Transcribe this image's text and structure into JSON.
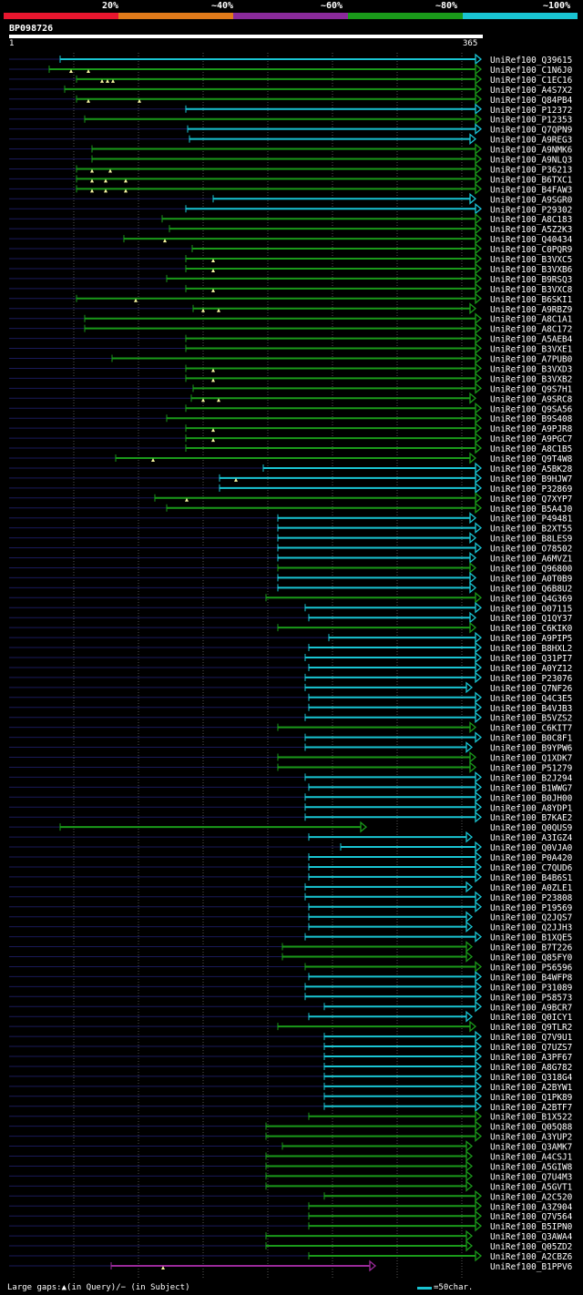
{
  "legend": {
    "labels": [
      "20%",
      "~40%",
      "~60%",
      "~80%",
      "~100%"
    ],
    "colors": [
      "#e8162e",
      "#e07a1a",
      "#8a2a9a",
      "#1a9a1a",
      "#19c4d2"
    ]
  },
  "query": {
    "id": "BP098726",
    "start": "1",
    "end": "365"
  },
  "footer": {
    "gaps": "Large gaps:▲(in Query)/− (in Subject)",
    "scale": "=50char."
  },
  "hits": [
    {
      "name": "UniRef100_Q39615",
      "start": 66,
      "end": 528,
      "color": "cyan",
      "marks": []
    },
    {
      "name": "UniRef100_C1N6J0",
      "start": 54,
      "end": 528,
      "color": "green",
      "marks": [
        78,
        97
      ]
    },
    {
      "name": "UniRef100_C1EC16",
      "start": 84,
      "end": 528,
      "color": "green",
      "marks": [
        112,
        118,
        124
      ]
    },
    {
      "name": "UniRef100_A4S7X2",
      "start": 71,
      "end": 528,
      "color": "green",
      "marks": []
    },
    {
      "name": "UniRef100_Q84PB4",
      "start": 84,
      "end": 528,
      "color": "green",
      "marks": [
        97,
        153
      ]
    },
    {
      "name": "UniRef100_P12372",
      "start": 204,
      "end": 528,
      "color": "cyan",
      "marks": []
    },
    {
      "name": "UniRef100_P12353",
      "start": 93,
      "end": 528,
      "color": "green",
      "marks": []
    },
    {
      "name": "UniRef100_Q7QPN9",
      "start": 206,
      "end": 528,
      "color": "cyan",
      "marks": []
    },
    {
      "name": "UniRef100_A9REG3",
      "start": 208,
      "end": 522,
      "color": "cyan",
      "marks": []
    },
    {
      "name": "UniRef100_A9NMK6",
      "start": 101,
      "end": 528,
      "color": "green",
      "marks": []
    },
    {
      "name": "UniRef100_A9NLQ3",
      "start": 101,
      "end": 528,
      "color": "green",
      "marks": []
    },
    {
      "name": "UniRef100_P36213",
      "start": 84,
      "end": 528,
      "color": "green",
      "marks": [
        101,
        121
      ]
    },
    {
      "name": "UniRef100_B6TXC1",
      "start": 84,
      "end": 528,
      "color": "green",
      "marks": [
        101,
        116,
        138
      ]
    },
    {
      "name": "UniRef100_B4FAW3",
      "start": 84,
      "end": 528,
      "color": "green",
      "marks": [
        101,
        116,
        138
      ]
    },
    {
      "name": "UniRef100_A9SGR0",
      "start": 234,
      "end": 522,
      "color": "cyan",
      "marks": []
    },
    {
      "name": "UniRef100_P29302",
      "start": 204,
      "end": 528,
      "color": "cyan",
      "marks": []
    },
    {
      "name": "UniRef100_A8C183",
      "start": 178,
      "end": 528,
      "color": "green",
      "marks": []
    },
    {
      "name": "UniRef100_A5Z2K3",
      "start": 186,
      "end": 528,
      "color": "green",
      "marks": []
    },
    {
      "name": "UniRef100_Q40434",
      "start": 136,
      "end": 528,
      "color": "green",
      "marks": [
        181
      ]
    },
    {
      "name": "UniRef100_C0PQR9",
      "start": 211,
      "end": 528,
      "color": "green",
      "marks": []
    },
    {
      "name": "UniRef100_B3VXC5",
      "start": 204,
      "end": 528,
      "color": "green",
      "marks": [
        234
      ]
    },
    {
      "name": "UniRef100_B3VXB6",
      "start": 204,
      "end": 528,
      "color": "green",
      "marks": [
        234
      ]
    },
    {
      "name": "UniRef100_B9RSQ3",
      "start": 183,
      "end": 528,
      "color": "green",
      "marks": []
    },
    {
      "name": "UniRef100_B3VXC8",
      "start": 204,
      "end": 528,
      "color": "green",
      "marks": [
        234
      ]
    },
    {
      "name": "UniRef100_B6SKI1",
      "start": 84,
      "end": 528,
      "color": "green",
      "marks": [
        149
      ]
    },
    {
      "name": "UniRef100_A9RBZ9",
      "start": 212,
      "end": 522,
      "color": "green",
      "marks": [
        223,
        240
      ]
    },
    {
      "name": "UniRef100_A8C1A1",
      "start": 93,
      "end": 528,
      "color": "green",
      "marks": []
    },
    {
      "name": "UniRef100_A8C172",
      "start": 93,
      "end": 528,
      "color": "green",
      "marks": []
    },
    {
      "name": "UniRef100_A5AEB4",
      "start": 204,
      "end": 528,
      "color": "green",
      "marks": []
    },
    {
      "name": "UniRef100_B3VXE1",
      "start": 204,
      "end": 528,
      "color": "green",
      "marks": []
    },
    {
      "name": "UniRef100_A7PUB0",
      "start": 123,
      "end": 528,
      "color": "green",
      "marks": []
    },
    {
      "name": "UniRef100_B3VXD3",
      "start": 204,
      "end": 528,
      "color": "green",
      "marks": [
        234
      ]
    },
    {
      "name": "UniRef100_B3VXB2",
      "start": 204,
      "end": 528,
      "color": "green",
      "marks": [
        234
      ]
    },
    {
      "name": "UniRef100_Q9S7H1",
      "start": 212,
      "end": 528,
      "color": "green",
      "marks": []
    },
    {
      "name": "UniRef100_A9SRC8",
      "start": 210,
      "end": 522,
      "color": "green",
      "marks": [
        223,
        240
      ]
    },
    {
      "name": "UniRef100_Q9SA56",
      "start": 204,
      "end": 528,
      "color": "green",
      "marks": []
    },
    {
      "name": "UniRef100_B9S408",
      "start": 183,
      "end": 528,
      "color": "green",
      "marks": []
    },
    {
      "name": "UniRef100_A9PJR8",
      "start": 204,
      "end": 528,
      "color": "green",
      "marks": [
        234
      ]
    },
    {
      "name": "UniRef100_A9PGC7",
      "start": 204,
      "end": 528,
      "color": "green",
      "marks": [
        234
      ]
    },
    {
      "name": "UniRef100_A8C1B5",
      "start": 204,
      "end": 528,
      "color": "green",
      "marks": []
    },
    {
      "name": "UniRef100_Q9T4W8",
      "start": 127,
      "end": 522,
      "color": "green",
      "marks": [
        168
      ]
    },
    {
      "name": "UniRef100_A5BK28",
      "start": 289,
      "end": 528,
      "color": "cyan",
      "marks": []
    },
    {
      "name": "UniRef100_B9HJW7",
      "start": 241,
      "end": 528,
      "color": "cyan",
      "marks": [
        259
      ]
    },
    {
      "name": "UniRef100_P32869",
      "start": 241,
      "end": 528,
      "color": "cyan",
      "marks": []
    },
    {
      "name": "UniRef100_Q7XYP7",
      "start": 170,
      "end": 528,
      "color": "green",
      "marks": [
        205
      ]
    },
    {
      "name": "UniRef100_B5A4J0",
      "start": 183,
      "end": 528,
      "color": "green",
      "marks": []
    },
    {
      "name": "UniRef100_P49481",
      "start": 305,
      "end": 522,
      "color": "cyan",
      "marks": []
    },
    {
      "name": "UniRef100_B2XT55",
      "start": 305,
      "end": 528,
      "color": "cyan",
      "marks": []
    },
    {
      "name": "UniRef100_B8LES9",
      "start": 305,
      "end": 522,
      "color": "cyan",
      "marks": []
    },
    {
      "name": "UniRef100_O78502",
      "start": 305,
      "end": 528,
      "color": "cyan",
      "marks": []
    },
    {
      "name": "UniRef100_A6MVZ1",
      "start": 305,
      "end": 522,
      "color": "cyan",
      "marks": []
    },
    {
      "name": "UniRef100_Q96800",
      "start": 305,
      "end": 522,
      "color": "green",
      "marks": []
    },
    {
      "name": "UniRef100_A0T0B9",
      "start": 305,
      "end": 522,
      "color": "cyan",
      "marks": []
    },
    {
      "name": "UniRef100_Q6B8U2",
      "start": 305,
      "end": 522,
      "color": "cyan",
      "marks": []
    },
    {
      "name": "UniRef100_Q4G369",
      "start": 292,
      "end": 528,
      "color": "green",
      "marks": []
    },
    {
      "name": "UniRef100_O07115",
      "start": 335,
      "end": 528,
      "color": "cyan",
      "marks": []
    },
    {
      "name": "UniRef100_Q1QY37",
      "start": 339,
      "end": 522,
      "color": "cyan",
      "marks": []
    },
    {
      "name": "UniRef100_C6KIK0",
      "start": 305,
      "end": 522,
      "color": "green",
      "marks": []
    },
    {
      "name": "UniRef100_A9PIP5",
      "start": 361,
      "end": 528,
      "color": "cyan",
      "marks": []
    },
    {
      "name": "UniRef100_B8HXL2",
      "start": 339,
      "end": 528,
      "color": "cyan",
      "marks": []
    },
    {
      "name": "UniRef100_Q31PI7",
      "start": 335,
      "end": 528,
      "color": "cyan",
      "marks": []
    },
    {
      "name": "UniRef100_A0YZ12",
      "start": 339,
      "end": 528,
      "color": "cyan",
      "marks": []
    },
    {
      "name": "UniRef100_P23076",
      "start": 335,
      "end": 528,
      "color": "cyan",
      "marks": []
    },
    {
      "name": "UniRef100_Q7NF26",
      "start": 335,
      "end": 518,
      "color": "cyan",
      "marks": []
    },
    {
      "name": "UniRef100_Q4C3E5",
      "start": 339,
      "end": 528,
      "color": "cyan",
      "marks": []
    },
    {
      "name": "UniRef100_B4VJB3",
      "start": 339,
      "end": 528,
      "color": "cyan",
      "marks": []
    },
    {
      "name": "UniRef100_B5VZS2",
      "start": 335,
      "end": 528,
      "color": "cyan",
      "marks": []
    },
    {
      "name": "UniRef100_C6KIT7",
      "start": 305,
      "end": 522,
      "color": "green",
      "marks": []
    },
    {
      "name": "UniRef100_B0C8F1",
      "start": 335,
      "end": 528,
      "color": "cyan",
      "marks": []
    },
    {
      "name": "UniRef100_B9YPW6",
      "start": 335,
      "end": 518,
      "color": "cyan",
      "marks": []
    },
    {
      "name": "UniRef100_Q1XDK7",
      "start": 305,
      "end": 522,
      "color": "green",
      "marks": []
    },
    {
      "name": "UniRef100_P51279",
      "start": 305,
      "end": 522,
      "color": "green",
      "marks": []
    },
    {
      "name": "UniRef100_B2J294",
      "start": 335,
      "end": 528,
      "color": "cyan",
      "marks": []
    },
    {
      "name": "UniRef100_B1WWG7",
      "start": 339,
      "end": 528,
      "color": "cyan",
      "marks": []
    },
    {
      "name": "UniRef100_B0JH00",
      "start": 335,
      "end": 528,
      "color": "cyan",
      "marks": []
    },
    {
      "name": "UniRef100_A8YDP1",
      "start": 335,
      "end": 528,
      "color": "cyan",
      "marks": []
    },
    {
      "name": "UniRef100_B7KAE2",
      "start": 335,
      "end": 528,
      "color": "cyan",
      "marks": []
    },
    {
      "name": "UniRef100_Q0QUS9",
      "start": 66,
      "end": 402,
      "color": "green",
      "marks": []
    },
    {
      "name": "UniRef100_A3IGZ4",
      "start": 339,
      "end": 518,
      "color": "cyan",
      "marks": []
    },
    {
      "name": "UniRef100_Q0VJA0",
      "start": 374,
      "end": 528,
      "color": "cyan",
      "marks": []
    },
    {
      "name": "UniRef100_P0A420",
      "start": 339,
      "end": 528,
      "color": "cyan",
      "marks": []
    },
    {
      "name": "UniRef100_C7QUD6",
      "start": 339,
      "end": 528,
      "color": "cyan",
      "marks": []
    },
    {
      "name": "UniRef100_B4B6S1",
      "start": 339,
      "end": 528,
      "color": "cyan",
      "marks": []
    },
    {
      "name": "UniRef100_A0ZLE1",
      "start": 335,
      "end": 518,
      "color": "cyan",
      "marks": []
    },
    {
      "name": "UniRef100_P23808",
      "start": 335,
      "end": 528,
      "color": "cyan",
      "marks": []
    },
    {
      "name": "UniRef100_P19569",
      "start": 339,
      "end": 528,
      "color": "cyan",
      "marks": []
    },
    {
      "name": "UniRef100_Q2JQS7",
      "start": 339,
      "end": 518,
      "color": "cyan",
      "marks": []
    },
    {
      "name": "UniRef100_Q2JJH3",
      "start": 339,
      "end": 518,
      "color": "cyan",
      "marks": []
    },
    {
      "name": "UniRef100_B1XQE5",
      "start": 335,
      "end": 528,
      "color": "cyan",
      "marks": []
    },
    {
      "name": "UniRef100_B7T226",
      "start": 310,
      "end": 518,
      "color": "green",
      "marks": []
    },
    {
      "name": "UniRef100_Q85FY0",
      "start": 310,
      "end": 518,
      "color": "green",
      "marks": []
    },
    {
      "name": "UniRef100_P56596",
      "start": 335,
      "end": 528,
      "color": "green",
      "marks": []
    },
    {
      "name": "UniRef100_B4WFP8",
      "start": 339,
      "end": 528,
      "color": "cyan",
      "marks": []
    },
    {
      "name": "UniRef100_P31089",
      "start": 335,
      "end": 528,
      "color": "cyan",
      "marks": []
    },
    {
      "name": "UniRef100_P58573",
      "start": 335,
      "end": 528,
      "color": "cyan",
      "marks": []
    },
    {
      "name": "UniRef100_A9BCR7",
      "start": 356,
      "end": 528,
      "color": "cyan",
      "marks": []
    },
    {
      "name": "UniRef100_Q0ICY1",
      "start": 339,
      "end": 518,
      "color": "cyan",
      "marks": []
    },
    {
      "name": "UniRef100_Q9TLR2",
      "start": 305,
      "end": 522,
      "color": "green",
      "marks": []
    },
    {
      "name": "UniRef100_Q7V9U1",
      "start": 356,
      "end": 528,
      "color": "cyan",
      "marks": []
    },
    {
      "name": "UniRef100_Q7UZS7",
      "start": 356,
      "end": 528,
      "color": "cyan",
      "marks": []
    },
    {
      "name": "UniRef100_A3PF67",
      "start": 356,
      "end": 528,
      "color": "cyan",
      "marks": []
    },
    {
      "name": "UniRef100_A8G782",
      "start": 356,
      "end": 528,
      "color": "cyan",
      "marks": []
    },
    {
      "name": "UniRef100_Q318G4",
      "start": 356,
      "end": 528,
      "color": "cyan",
      "marks": []
    },
    {
      "name": "UniRef100_A2BYW1",
      "start": 356,
      "end": 528,
      "color": "cyan",
      "marks": []
    },
    {
      "name": "UniRef100_Q1PK89",
      "start": 356,
      "end": 528,
      "color": "cyan",
      "marks": []
    },
    {
      "name": "UniRef100_A2BTF7",
      "start": 356,
      "end": 528,
      "color": "cyan",
      "marks": []
    },
    {
      "name": "UniRef100_B1X522",
      "start": 339,
      "end": 528,
      "color": "green",
      "marks": []
    },
    {
      "name": "UniRef100_Q05Q88",
      "start": 292,
      "end": 528,
      "color": "green",
      "marks": []
    },
    {
      "name": "UniRef100_A3YUP2",
      "start": 292,
      "end": 528,
      "color": "green",
      "marks": []
    },
    {
      "name": "UniRef100_Q3AMK7",
      "start": 310,
      "end": 518,
      "color": "green",
      "marks": []
    },
    {
      "name": "UniRef100_A4CSJ1",
      "start": 292,
      "end": 518,
      "color": "green",
      "marks": []
    },
    {
      "name": "UniRef100_A5GIW8",
      "start": 292,
      "end": 518,
      "color": "green",
      "marks": []
    },
    {
      "name": "UniRef100_Q7U4M3",
      "start": 292,
      "end": 518,
      "color": "green",
      "marks": []
    },
    {
      "name": "UniRef100_A5GVT1",
      "start": 292,
      "end": 518,
      "color": "green",
      "marks": []
    },
    {
      "name": "UniRef100_A2C520",
      "start": 356,
      "end": 528,
      "color": "green",
      "marks": []
    },
    {
      "name": "UniRef100_A3Z904",
      "start": 339,
      "end": 528,
      "color": "green",
      "marks": []
    },
    {
      "name": "UniRef100_Q7V564",
      "start": 339,
      "end": 528,
      "color": "green",
      "marks": []
    },
    {
      "name": "UniRef100_B5IPN0",
      "start": 339,
      "end": 528,
      "color": "green",
      "marks": []
    },
    {
      "name": "UniRef100_Q3AWA4",
      "start": 292,
      "end": 518,
      "color": "green",
      "marks": []
    },
    {
      "name": "UniRef100_Q05ZD2",
      "start": 292,
      "end": 518,
      "color": "green",
      "marks": []
    },
    {
      "name": "UniRef100_A2CBZ6",
      "start": 339,
      "end": 528,
      "color": "green",
      "marks": []
    },
    {
      "name": "UniRef100_B1PPV6",
      "start": 122,
      "end": 412,
      "color": "purple",
      "marks": [
        179
      ]
    }
  ]
}
